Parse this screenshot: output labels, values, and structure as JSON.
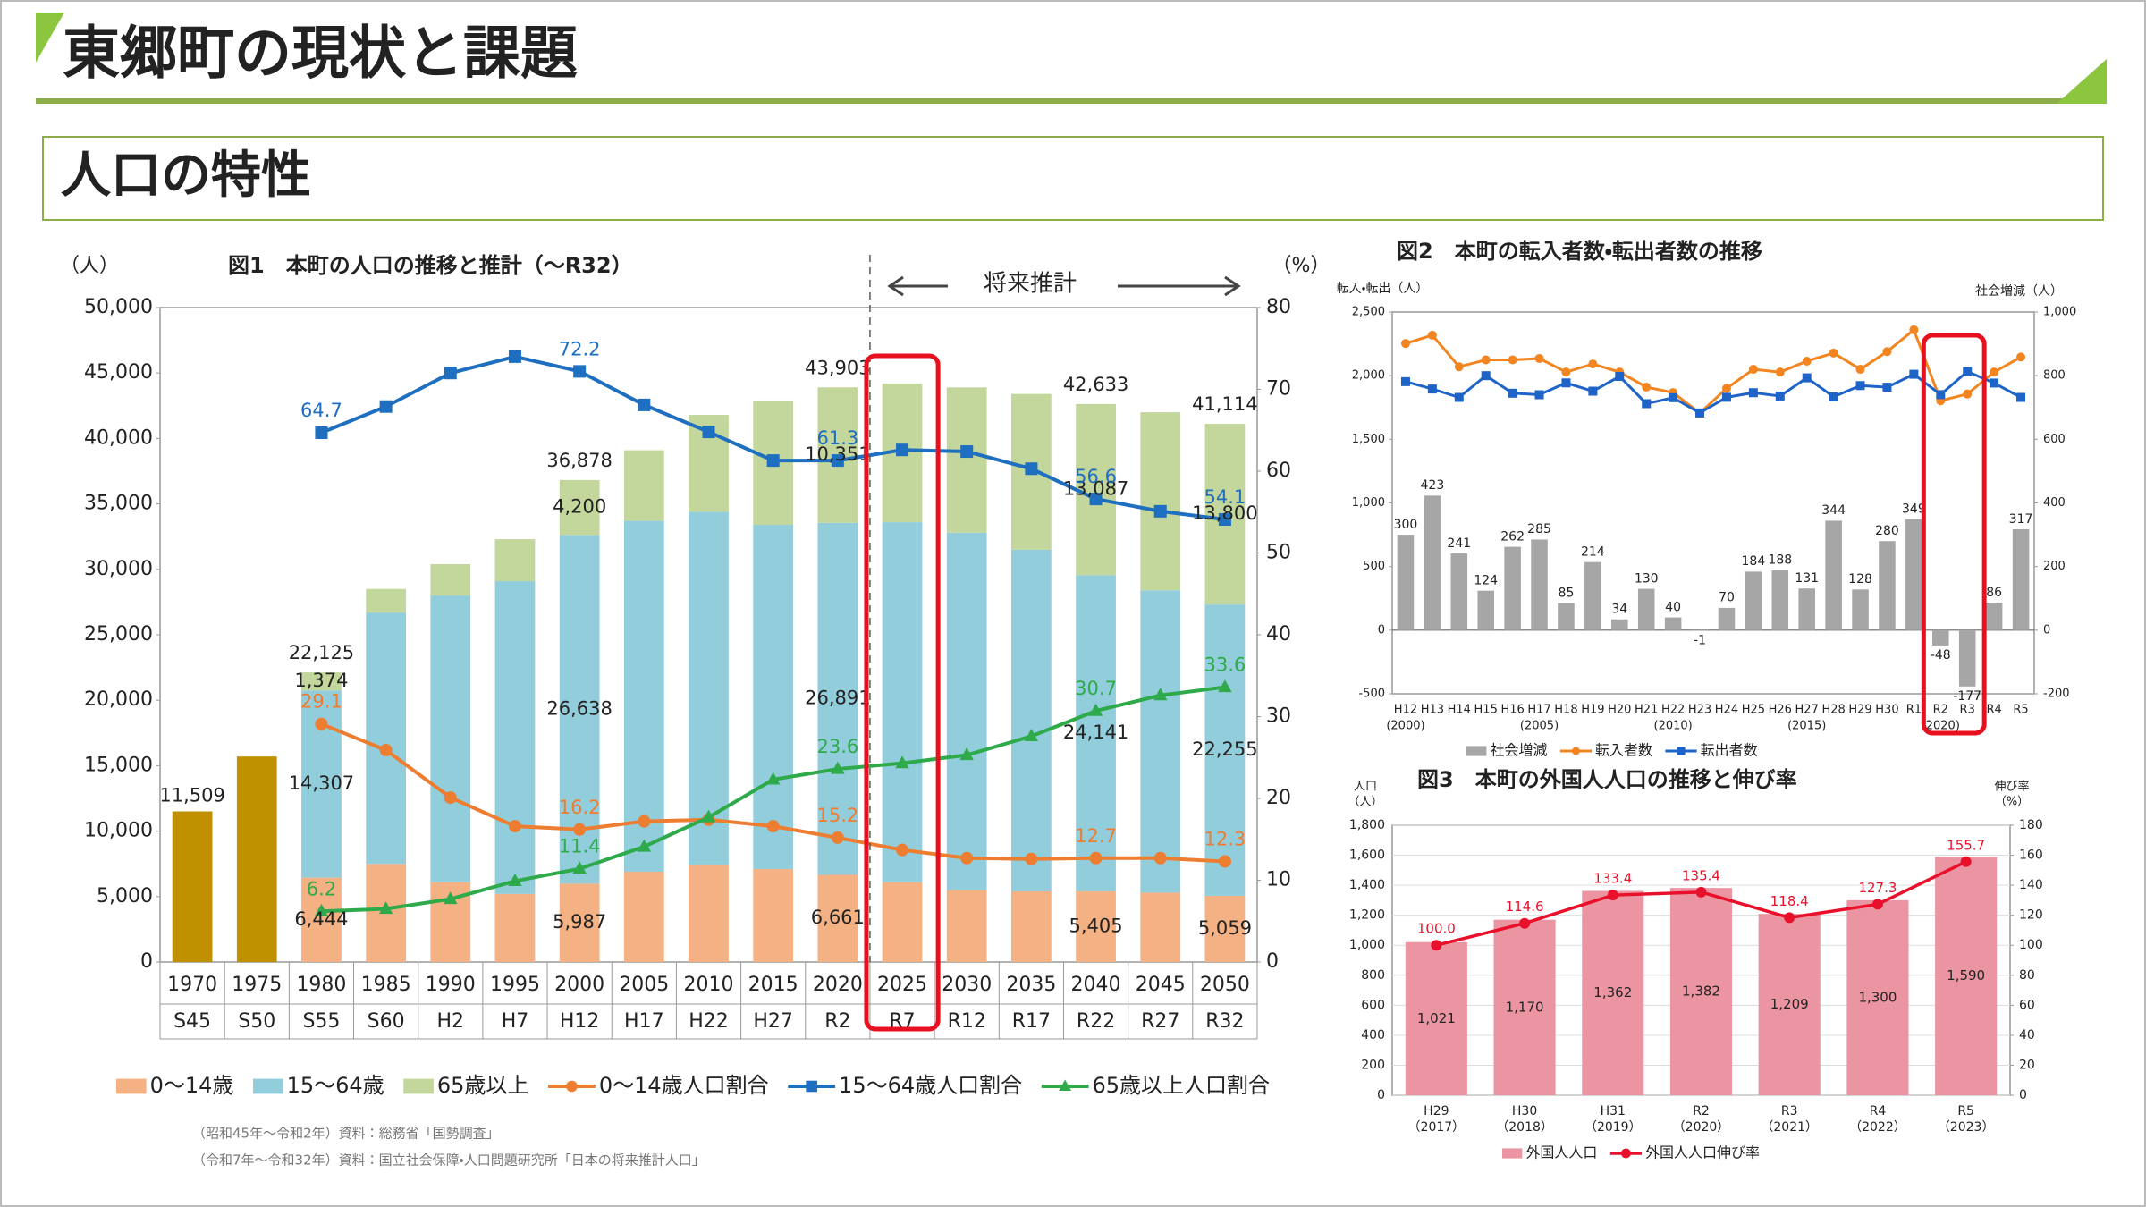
{
  "slide": {
    "title": "東郷町の現状と課題",
    "subtitle": "人口の特性"
  },
  "chart_data": [
    {
      "type": "bar",
      "title": "図1　本町の人口の推移と推計（～R32）",
      "ylabel": "（人）",
      "y2label": "（%）",
      "annotation": "将来推計",
      "stacked": true,
      "grid": false,
      "sources": [
        "（昭和45年～令和2年）資料：総務省「国勢調査」",
        "（令和7年～令和32年）資料：国立社会保障・人口問題研究所「日本の将来推計人口」"
      ],
      "categories": [
        "1970",
        "1975",
        "1980",
        "1985",
        "1990",
        "1995",
        "2000",
        "2005",
        "2010",
        "2015",
        "2020",
        "2025",
        "2030",
        "2035",
        "2040",
        "2045",
        "2050"
      ],
      "category_sublabels": [
        "S45",
        "S50",
        "S55",
        "S60",
        "H2",
        "H7",
        "H12",
        "H17",
        "H22",
        "H27",
        "R2",
        "R7",
        "R12",
        "R17",
        "R22",
        "R27",
        "R32"
      ],
      "ylim": [
        0,
        50000
      ],
      "yticks": [
        0,
        {
          "value": 5000,
          "label": "5,000"
        },
        {
          "value": 10000,
          "label": "10,000"
        },
        {
          "value": 15000,
          "label": "15,000"
        },
        {
          "value": 20000,
          "label": "20,000"
        },
        {
          "value": 25000,
          "label": "25,000"
        },
        {
          "value": 30000,
          "label": "30,000"
        },
        {
          "value": 35000,
          "label": "35,000"
        },
        {
          "value": 40000,
          "label": "40,000"
        },
        {
          "value": 45000,
          "label": "45,000"
        },
        {
          "value": 50000,
          "label": "50,000"
        }
      ],
      "y2lim": [
        0,
        80
      ],
      "y2ticks": [
        0,
        10,
        20,
        30,
        40,
        50,
        60,
        70,
        80
      ],
      "series": [
        {
          "name": "0～14歳",
          "color": "#f4b183",
          "values": [
            null,
            null,
            6444,
            7500,
            6100,
            5200,
            5987,
            6900,
            7400,
            7100,
            6661,
            6100,
            5500,
            5400,
            5405,
            5300,
            5059
          ],
          "value_labels": [
            null,
            null,
            "6,444",
            null,
            null,
            null,
            "5,987",
            null,
            null,
            null,
            "6,661",
            null,
            null,
            null,
            "5,405",
            null,
            "5,059"
          ]
        },
        {
          "name": "15～64歳",
          "color": "#92cddc",
          "values": [
            null,
            null,
            14307,
            19200,
            21900,
            23900,
            26638,
            26800,
            27000,
            26300,
            26891,
            27500,
            27300,
            26100,
            24141,
            23100,
            22255
          ],
          "value_labels": [
            null,
            null,
            "14,307",
            null,
            null,
            null,
            "26,638",
            null,
            null,
            null,
            "26,891",
            null,
            null,
            null,
            "24,141",
            null,
            "22,255"
          ]
        },
        {
          "name": "65歳以上",
          "color": "#c3d69b",
          "values": [
            null,
            null,
            1374,
            1800,
            2400,
            3200,
            4200,
            5400,
            7400,
            9500,
            10351,
            10600,
            11100,
            11900,
            13087,
            13600,
            13800
          ],
          "value_labels": [
            null,
            null,
            "1,374",
            null,
            null,
            null,
            "4,200",
            null,
            null,
            null,
            "10,351",
            null,
            null,
            null,
            "13,087",
            null,
            "13,800"
          ]
        },
        {
          "color": "#bf9000",
          "values": [
            11509,
            15700,
            null,
            null,
            null,
            null,
            null,
            null,
            null,
            null,
            null,
            null,
            null,
            null,
            null,
            null,
            null
          ],
          "value_labels": [
            "11,509",
            null,
            null,
            null,
            null,
            null,
            null,
            null,
            null,
            null,
            null,
            null,
            null,
            null,
            null,
            null,
            null
          ]
        },
        {
          "name": "0～14歳人口割合",
          "type": "line",
          "axis": "y2",
          "marker": "circle",
          "color": "#ed7d31",
          "values": [
            null,
            null,
            29.1,
            25.9,
            20.1,
            16.6,
            16.2,
            17.2,
            17.4,
            16.6,
            15.2,
            13.7,
            12.7,
            12.6,
            12.7,
            12.7,
            12.3
          ],
          "value_labels": [
            null,
            null,
            "29.1",
            null,
            null,
            null,
            "16.2",
            null,
            null,
            null,
            "15.2",
            null,
            null,
            null,
            "12.7",
            null,
            "12.3"
          ]
        },
        {
          "name": "15～64歳人口割合",
          "type": "line",
          "axis": "y2",
          "marker": "square",
          "color": "#1f6fc0",
          "values": [
            null,
            null,
            64.7,
            67.9,
            72.0,
            74.0,
            72.2,
            68.1,
            64.8,
            61.3,
            61.3,
            62.6,
            62.4,
            60.3,
            56.6,
            55.1,
            54.1
          ],
          "value_labels": [
            null,
            null,
            "64.7",
            null,
            null,
            null,
            "72.2",
            null,
            null,
            null,
            "61.3",
            null,
            null,
            null,
            "56.6",
            null,
            "54.1"
          ]
        },
        {
          "name": "65歳以上人口割合",
          "type": "line",
          "axis": "y2",
          "marker": "triangle",
          "color": "#2eaa4a",
          "values": [
            null,
            null,
            6.2,
            6.5,
            7.7,
            9.9,
            11.4,
            14.1,
            17.7,
            22.3,
            23.6,
            24.3,
            25.3,
            27.6,
            30.7,
            32.6,
            33.6
          ],
          "value_labels": [
            null,
            null,
            "6.2",
            null,
            null,
            null,
            "11.4",
            null,
            null,
            null,
            "23.6",
            null,
            null,
            null,
            "30.7",
            null,
            "33.6"
          ]
        }
      ],
      "total_labels": [
        null,
        null,
        "22,125",
        null,
        null,
        null,
        "36,878",
        null,
        null,
        null,
        "43,903",
        null,
        null,
        null,
        "42,633",
        null,
        "41,114"
      ]
    },
    {
      "type": "bar",
      "title": "図2　本町の転入者数・転出者数の推移",
      "ylabel": "転入・転出（人）",
      "y2label": "社会増減（人）",
      "grid": false,
      "show_values": true,
      "categories": [
        "H12",
        "H13",
        "H14",
        "H15",
        "H16",
        "H17",
        "H18",
        "H19",
        "H20",
        "H21",
        "H22",
        "H23",
        "H24",
        "H25",
        "H26",
        "H27",
        "H28",
        "H29",
        "H30",
        "R1",
        "R2",
        "R3",
        "R4",
        "R5"
      ],
      "category_sublabels": [
        "(2000)",
        null,
        null,
        null,
        null,
        "(2005)",
        null,
        null,
        null,
        null,
        "(2010)",
        null,
        null,
        null,
        null,
        "(2015)",
        null,
        null,
        null,
        null,
        "(2020)",
        null,
        null,
        null
      ],
      "ylim": [
        -500,
        2500
      ],
      "yticks": [
        -500,
        0,
        500,
        {
          "value": 1000,
          "label": "1,000"
        },
        {
          "value": 1500,
          "label": "1,500"
        },
        {
          "value": 2000,
          "label": "2,000"
        },
        {
          "value": 2500,
          "label": "2,500"
        }
      ],
      "y2lim": [
        -200,
        1000
      ],
      "y2ticks": [
        -200,
        0,
        200,
        400,
        600,
        800,
        {
          "value": 1000,
          "label": "1,000"
        }
      ],
      "series": [
        {
          "name": "社会増減",
          "axis": "y2",
          "color": "#a6a6a6",
          "values": [
            300,
            423,
            241,
            124,
            262,
            285,
            85,
            214,
            34,
            130,
            40,
            -1,
            70,
            184,
            188,
            131,
            344,
            128,
            280,
            349,
            -48,
            -177,
            86,
            317
          ]
        },
        {
          "name": "転入者数",
          "type": "line",
          "marker": "circle",
          "color": "#f28520",
          "values": [
            2253,
            2318,
            2070,
            2124,
            2124,
            2135,
            2028,
            2092,
            2028,
            1910,
            1867,
            1706,
            1900,
            2050,
            2028,
            2114,
            2178,
            2050,
            2189,
            2360,
            1803,
            1856,
            2028,
            2146
          ]
        },
        {
          "name": "転出者数",
          "type": "line",
          "marker": "square",
          "color": "#1e64c8",
          "values": [
            1953,
            1895,
            1829,
            2000,
            1862,
            1850,
            1943,
            1878,
            1994,
            1780,
            1827,
            1707,
            1830,
            1866,
            1840,
            1983,
            1834,
            1922,
            1909,
            2011,
            1851,
            2033,
            1942,
            1829
          ]
        }
      ]
    },
    {
      "type": "bar",
      "title": "図3　本町の外国人人口の推移と伸び率",
      "ylabel": [
        "人口",
        "（人）"
      ],
      "y2label": [
        "伸び率",
        "（%）"
      ],
      "grid": true,
      "categories": [
        "H29",
        "H30",
        "H31",
        "R2",
        "R3",
        "R4",
        "R5"
      ],
      "category_sublabels": [
        "（2017）",
        "（2018）",
        "（2019）",
        "（2020）",
        "（2021）",
        "（2022）",
        "（2023）"
      ],
      "ylim": [
        0,
        1800
      ],
      "yticks": [
        0,
        200,
        400,
        600,
        800,
        {
          "value": 1000,
          "label": "1,000"
        },
        {
          "value": 1200,
          "label": "1,200"
        },
        {
          "value": 1400,
          "label": "1,400"
        },
        {
          "value": 1600,
          "label": "1,600"
        },
        {
          "value": 1800,
          "label": "1,800"
        }
      ],
      "y2lim": [
        0,
        180
      ],
      "y2ticks": [
        0,
        20,
        40,
        60,
        80,
        100,
        120,
        140,
        160,
        180
      ],
      "series": [
        {
          "name": "外国人人口",
          "color": "#eb95a2",
          "values": [
            1021,
            1170,
            1362,
            1382,
            1209,
            1300,
            1590
          ],
          "value_labels": [
            "1,021",
            "1,170",
            "1,362",
            "1,382",
            "1,209",
            "1,300",
            "1,590"
          ]
        },
        {
          "name": "外国人人口伸び率",
          "type": "line",
          "axis": "y2",
          "marker": "circle",
          "color": "#e8102a",
          "values": [
            100,
            114.6,
            133.4,
            135.4,
            118.4,
            127.3,
            155.7
          ],
          "value_labels": [
            "100.0",
            "114.6",
            "133.4",
            "135.4",
            "118.4",
            "127.3",
            "155.7"
          ]
        }
      ]
    }
  ]
}
